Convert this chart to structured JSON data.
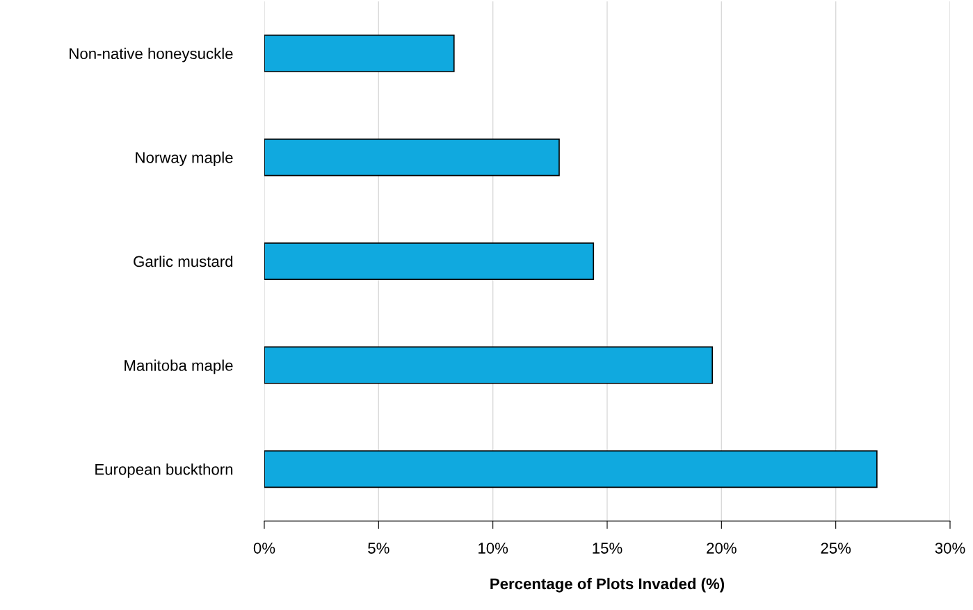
{
  "chart_data": {
    "type": "bar",
    "orientation": "horizontal",
    "xlabel": "Percentage of Plots Invaded (%)",
    "categories": [
      "Non-native honeysuckle",
      "Norway maple",
      "Garlic mustard",
      "Manitoba maple",
      "European buckthorn"
    ],
    "values": [
      8.3,
      12.9,
      14.4,
      19.6,
      26.8
    ],
    "color": "#10a9df",
    "xlim": [
      0,
      30
    ],
    "xticks": [
      {
        "value": 0,
        "label": "0%"
      },
      {
        "value": 5,
        "label": "5%"
      },
      {
        "value": 10,
        "label": "10%"
      },
      {
        "value": 15,
        "label": "15%"
      },
      {
        "value": 20,
        "label": "20%"
      },
      {
        "value": 25,
        "label": "25%"
      },
      {
        "value": 30,
        "label": "30%"
      }
    ],
    "grid": "x"
  }
}
